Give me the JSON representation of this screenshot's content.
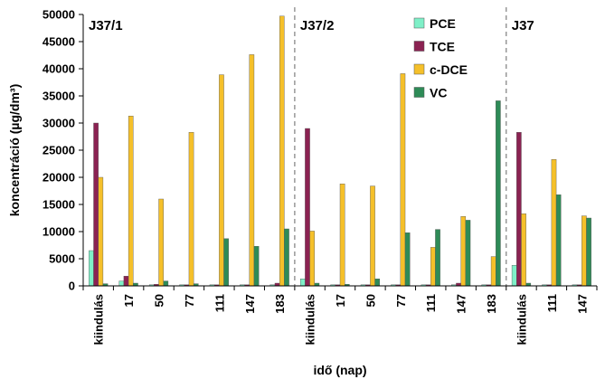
{
  "chart_data": {
    "type": "bar",
    "xlabel": "idő (nap)",
    "ylabel": "koncentráció (µg/dm³)",
    "ylim": [
      0,
      50000
    ],
    "yticks": [
      0,
      5000,
      10000,
      15000,
      20000,
      25000,
      30000,
      35000,
      40000,
      45000,
      50000
    ],
    "grid": false,
    "legend_position": "top-right",
    "groups": [
      {
        "label": "J37/1",
        "categories": [
          "kiindulás",
          "17",
          "50",
          "77",
          "111",
          "147",
          "183"
        ]
      },
      {
        "label": "J37/2",
        "categories": [
          "kiindulás",
          "17",
          "50",
          "77",
          "111",
          "147",
          "183"
        ]
      },
      {
        "label": "J37",
        "categories": [
          "kiindulás",
          "111",
          "147"
        ]
      }
    ],
    "categories": [
      "kiindulás",
      "17",
      "50",
      "77",
      "111",
      "147",
      "183",
      "kiindulás",
      "17",
      "50",
      "77",
      "111",
      "147",
      "183",
      "kiindulás",
      "111",
      "147"
    ],
    "series": [
      {
        "name": "PCE",
        "color": "#7FF0C8",
        "values": [
          6500,
          900,
          200,
          200,
          200,
          200,
          200,
          1300,
          200,
          200,
          200,
          200,
          200,
          200,
          3800,
          200,
          200
        ]
      },
      {
        "name": "TCE",
        "color": "#8B2252",
        "values": [
          30000,
          1800,
          300,
          200,
          200,
          200,
          500,
          29000,
          200,
          200,
          200,
          200,
          500,
          200,
          28300,
          200,
          200
        ]
      },
      {
        "name": "c-DCE",
        "color": "#F5C02A",
        "values": [
          20000,
          31300,
          16000,
          28300,
          38900,
          42600,
          49700,
          10100,
          18800,
          18400,
          39100,
          7100,
          12800,
          5400,
          13300,
          23300,
          12900
        ]
      },
      {
        "name": "VC",
        "color": "#2E8B57",
        "values": [
          400,
          500,
          900,
          400,
          8700,
          7300,
          10500,
          500,
          300,
          1300,
          9800,
          10400,
          12100,
          34100,
          500,
          16800,
          12500
        ]
      }
    ]
  }
}
